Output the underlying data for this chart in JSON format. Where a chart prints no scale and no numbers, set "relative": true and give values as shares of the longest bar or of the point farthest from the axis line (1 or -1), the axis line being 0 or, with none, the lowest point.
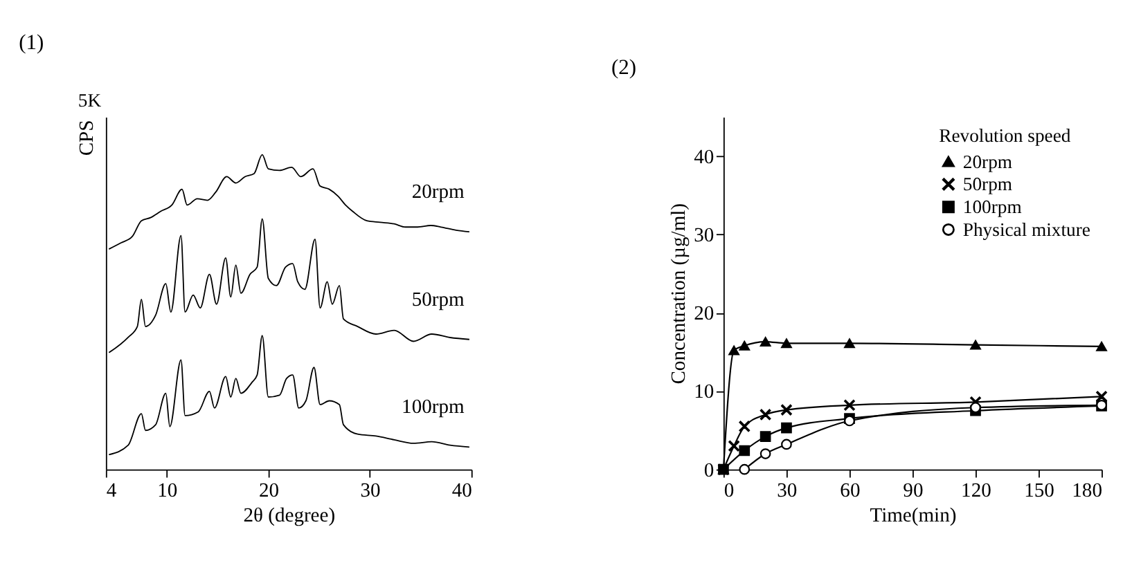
{
  "chart_data": [
    {
      "type": "line",
      "title": "(1)",
      "xlabel": "2θ (degree)",
      "ylabel": "CPS",
      "annotations": [
        "5K"
      ],
      "relative": true,
      "xlim": [
        4,
        40
      ],
      "xticks": [
        4,
        10,
        20,
        30,
        40
      ],
      "grid": false,
      "legend": false,
      "series": [
        {
          "name": "20rpm",
          "color": "#000000",
          "x": [
            4.3,
            5.5,
            6.6,
            7.5,
            8.4,
            9.4,
            10.5,
            11.5,
            12,
            13,
            14,
            14.8,
            15.9,
            16.8,
            17.7,
            18.6,
            19.4,
            20,
            21.1,
            22.3,
            23.2,
            24.4,
            25.1,
            26,
            26.9,
            27.6,
            28.3,
            29.7,
            31,
            32.4,
            33.5,
            34.7,
            36,
            37,
            38.5,
            39.8
          ],
          "values": [
            0.7,
            0.72,
            0.74,
            0.79,
            0.8,
            0.82,
            0.84,
            0.89,
            0.84,
            0.86,
            0.855,
            0.88,
            0.93,
            0.91,
            0.93,
            0.94,
            1.0,
            0.955,
            0.95,
            0.96,
            0.93,
            0.955,
            0.9,
            0.89,
            0.867,
            0.84,
            0.82,
            0.79,
            0.785,
            0.78,
            0.77,
            0.77,
            0.775,
            0.77,
            0.76,
            0.755
          ]
        },
        {
          "name": "50rpm",
          "color": "#000000",
          "x": [
            4.3,
            6.2,
            7.1,
            7.5,
            7.9,
            8.9,
            9.9,
            10.4,
            11.4,
            11.8,
            12.6,
            13.3,
            14.2,
            14.9,
            15.8,
            16.3,
            16.8,
            17.3,
            18.2,
            18.9,
            19.4,
            20,
            20.8,
            21.7,
            22.4,
            22.9,
            23.6,
            24.6,
            25.1,
            25.8,
            26.3,
            27,
            27.4,
            28.8,
            30.6,
            32.4,
            34.3,
            36.1,
            37.9,
            39.8
          ],
          "values": [
            0.371,
            0.42,
            0.454,
            0.54,
            0.454,
            0.49,
            0.59,
            0.5,
            0.743,
            0.5,
            0.554,
            0.513,
            0.62,
            0.525,
            0.672,
            0.548,
            0.649,
            0.56,
            0.62,
            0.643,
            0.796,
            0.607,
            0.584,
            0.643,
            0.654,
            0.596,
            0.572,
            0.731,
            0.513,
            0.596,
            0.525,
            0.584,
            0.478,
            0.454,
            0.43,
            0.442,
            0.407,
            0.43,
            0.419,
            0.413
          ]
        },
        {
          "name": "100rpm",
          "color": "#000000",
          "x": [
            4.3,
            6.2,
            7.5,
            7.9,
            8.9,
            9.9,
            10.3,
            11.4,
            11.8,
            13.1,
            14.2,
            14.7,
            15.8,
            16.3,
            16.8,
            17.3,
            18.4,
            18.9,
            19.4,
            20,
            21.1,
            21.8,
            22.4,
            23,
            23.7,
            24.5,
            25.1,
            26,
            27,
            27.4,
            28.8,
            30.6,
            32.4,
            34.3,
            36.1,
            37.9,
            39.8
          ],
          "values": [
            0.047,
            0.077,
            0.177,
            0.124,
            0.142,
            0.242,
            0.136,
            0.348,
            0.171,
            0.183,
            0.248,
            0.195,
            0.295,
            0.23,
            0.289,
            0.242,
            0.277,
            0.3,
            0.425,
            0.23,
            0.236,
            0.289,
            0.3,
            0.195,
            0.218,
            0.324,
            0.206,
            0.218,
            0.206,
            0.142,
            0.112,
            0.106,
            0.094,
            0.083,
            0.088,
            0.077,
            0.071
          ]
        }
      ]
    },
    {
      "type": "line",
      "title": "(2)",
      "xlabel": "Time(min)",
      "ylabel": "Concentration (µg/ml)",
      "legend_title": "Revolution speed",
      "legend": "top right",
      "grid": false,
      "xlim": [
        0,
        180
      ],
      "xticks": [
        0,
        30,
        60,
        90,
        120,
        150,
        180
      ],
      "ylim": [
        0,
        45
      ],
      "yticks": [
        0,
        10,
        20,
        30,
        40
      ],
      "series": [
        {
          "name": "20rpm",
          "color": "#000000",
          "marker": "triangle",
          "x": [
            0,
            5,
            10,
            20,
            30,
            60,
            120,
            180
          ],
          "values": [
            0,
            15.2,
            15.8,
            16.3,
            16.1,
            16.1,
            15.9,
            15.7
          ]
        },
        {
          "name": "50rpm",
          "color": "#000000",
          "marker": "cross",
          "x": [
            0,
            5,
            10,
            20,
            30,
            60,
            120,
            180
          ],
          "values": [
            0,
            3,
            5.5,
            7,
            7.6,
            8.2,
            8.6,
            9.3
          ]
        },
        {
          "name": "100rpm",
          "color": "#000000",
          "marker": "square",
          "x": [
            0,
            10,
            20,
            30,
            60,
            120,
            180
          ],
          "values": [
            0,
            2.4,
            4.2,
            5.3,
            6.5,
            7.5,
            8.1
          ]
        },
        {
          "name": "Physical mixture",
          "color": "#000000",
          "marker": "circle",
          "x": [
            10,
            20,
            30,
            60,
            120,
            180
          ],
          "values": [
            0,
            2,
            3.2,
            6.2,
            7.9,
            8.2
          ]
        }
      ]
    }
  ]
}
